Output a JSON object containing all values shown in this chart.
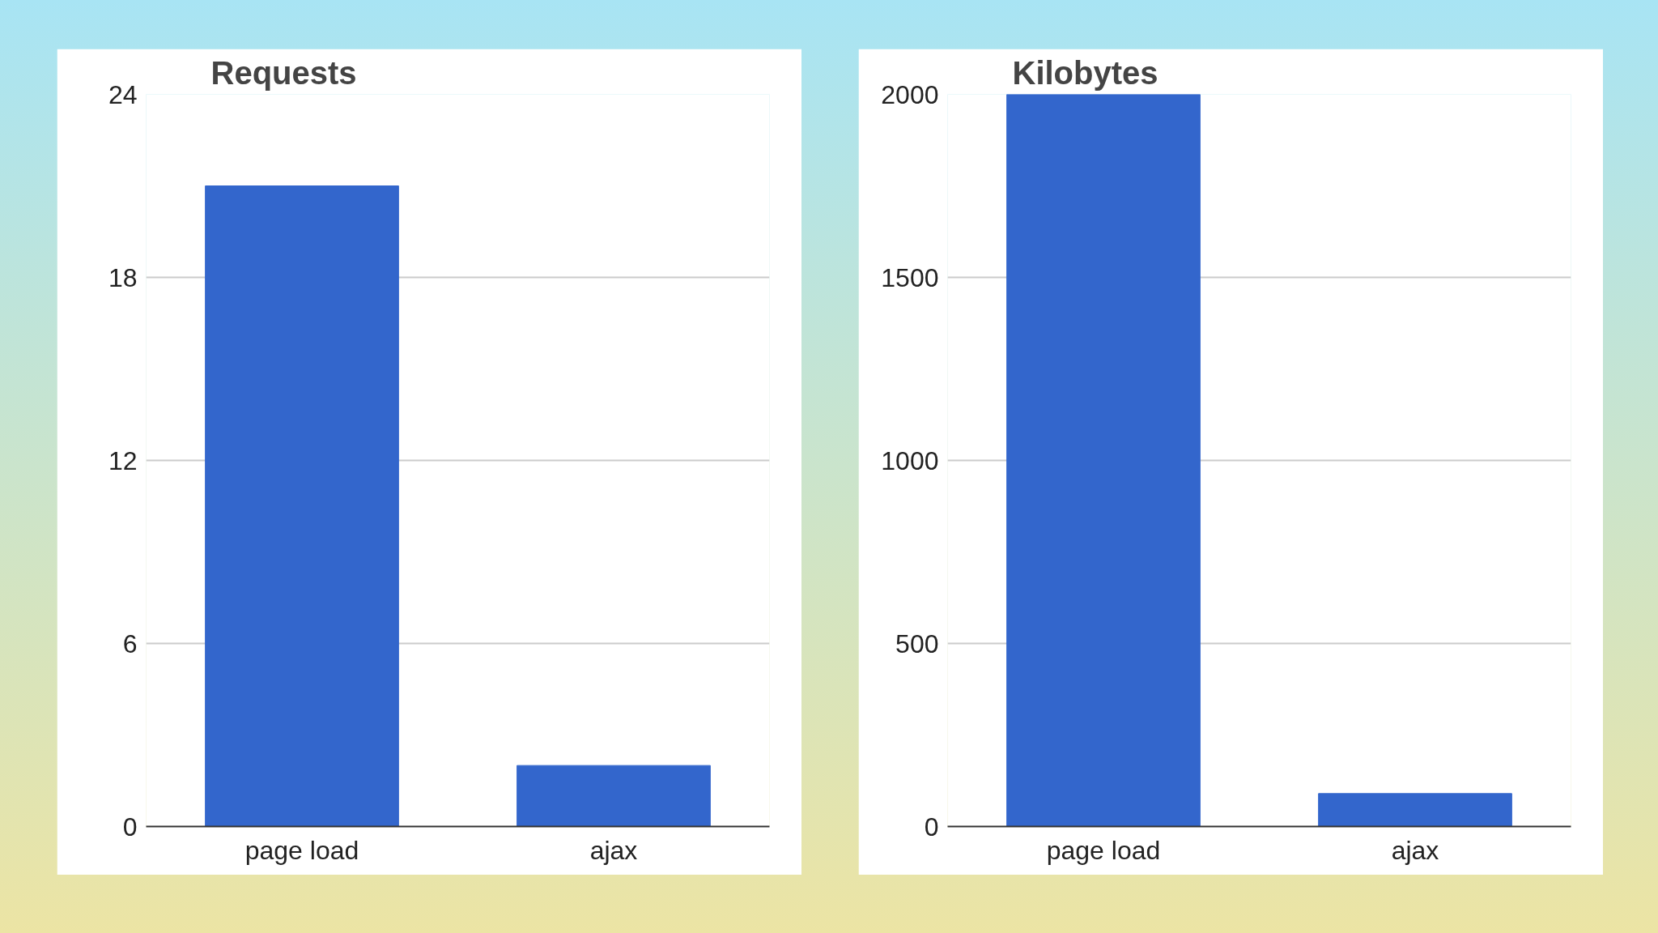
{
  "chart_data": [
    {
      "type": "bar",
      "title": "Requests",
      "categories": [
        "page load",
        "ajax"
      ],
      "values": [
        21,
        2
      ],
      "color": "#3366cc",
      "ylim": [
        0,
        24
      ],
      "yticks": [
        0,
        6,
        12,
        18,
        24
      ],
      "grid": "y"
    },
    {
      "type": "bar",
      "title": "Kilobytes",
      "categories": [
        "page load",
        "ajax"
      ],
      "values": [
        2000,
        90
      ],
      "color": "#3366cc",
      "ylim": [
        0,
        2000
      ],
      "yticks": [
        0,
        500,
        1000,
        1500,
        2000
      ],
      "grid": "y"
    }
  ]
}
